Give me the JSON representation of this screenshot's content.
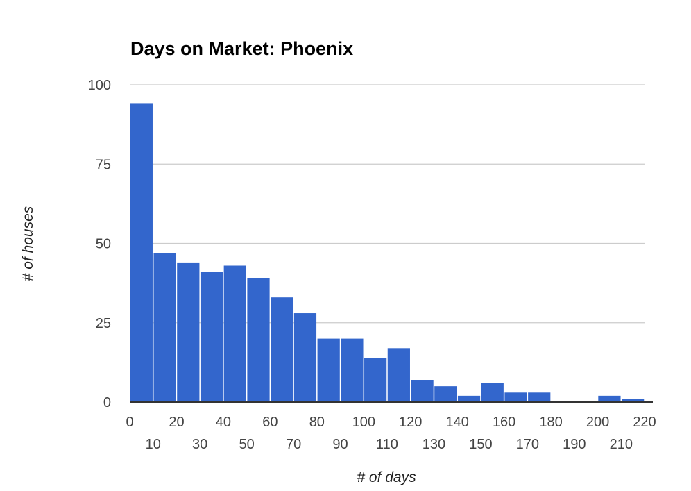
{
  "chart_data": {
    "type": "bar",
    "title": "Days on Market: Phoenix",
    "xlabel": "# of days",
    "ylabel": "# of houses",
    "bin_edges": [
      0,
      10,
      20,
      30,
      40,
      50,
      60,
      70,
      80,
      90,
      100,
      110,
      120,
      130,
      140,
      150,
      160,
      170,
      180,
      190,
      200,
      210,
      220
    ],
    "values": [
      94,
      47,
      44,
      41,
      43,
      39,
      33,
      28,
      20,
      20,
      14,
      17,
      7,
      5,
      2,
      6,
      3,
      3,
      0,
      0,
      2,
      1
    ],
    "ylim": [
      0,
      100
    ],
    "yticks": [
      0,
      25,
      50,
      75,
      100
    ],
    "xticks_top_row": [
      "0",
      "20",
      "40",
      "60",
      "80",
      "100",
      "120",
      "140",
      "160",
      "180",
      "200",
      "220"
    ],
    "xticks_bottom_row": [
      "10",
      "30",
      "50",
      "70",
      "90",
      "110",
      "130",
      "150",
      "170",
      "190",
      "210"
    ],
    "grid": true,
    "colors": {
      "bar": "#3366cc",
      "grid": "#cccccc",
      "baseline": "#333333"
    }
  }
}
